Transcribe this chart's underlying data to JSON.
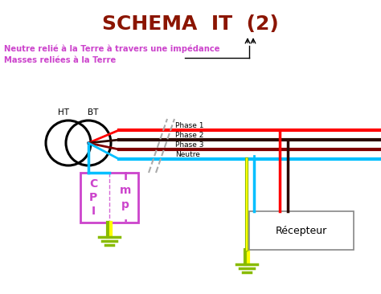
{
  "title": "SCHEMA  IT  (2)",
  "title_color": "#8B1500",
  "title_fontsize": 18,
  "subtitle1": "Neutre relié à la Terre à travers une impédance",
  "subtitle2": "Masses reliées à la Terre",
  "subtitle_color": "#CC44CC",
  "bg_color": "#FFFFFF",
  "phase1_color": "#FF0000",
  "phase2_color": "#2B0A00",
  "phase3_color": "#800000",
  "neutre_color": "#00BFFF",
  "earth_color_green": "#88BB00",
  "earth_color_yellow": "#FFFF00",
  "cpi_border_color": "#CC44CC",
  "cpi_text_color": "#CC44CC",
  "recepteur_border_color": "#888888",
  "recepteur_text_color": "#000000",
  "arrow_color": "#000000",
  "slash_color": "#AAAAAA",
  "transformer_color": "#000000"
}
